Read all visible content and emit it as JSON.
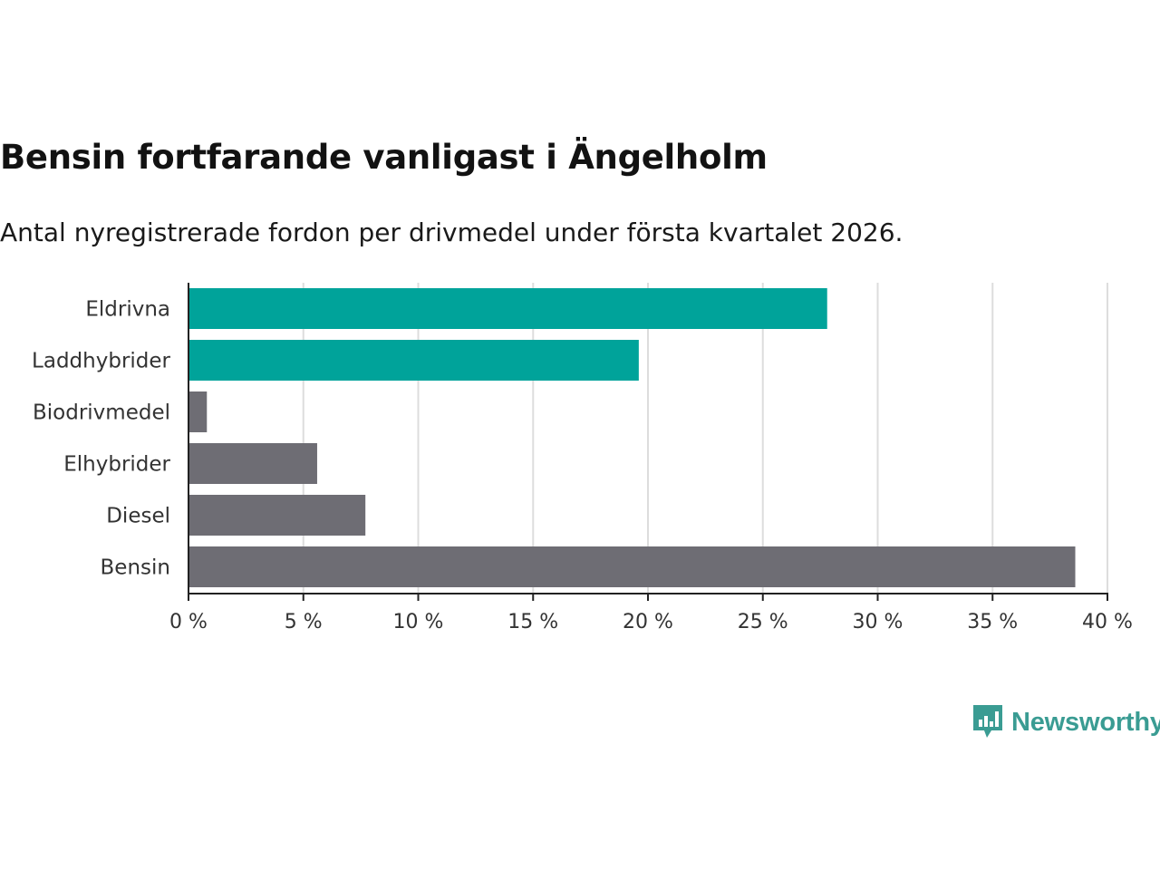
{
  "header": {
    "title": "Bensin fortfarande vanligast i Ängelholm",
    "subtitle": "Antal nyregistrerade fordon per drivmedel under första kvartalet 2026."
  },
  "brand": {
    "name": "Newsworthy",
    "icon": "newsworthy-logo-icon",
    "color": "#3a9c93"
  },
  "colors": {
    "highlight": "#00a39a",
    "default": "#6e6d74",
    "grid": "#dddddd",
    "axis": "#222222"
  },
  "chart_data": {
    "type": "bar",
    "orientation": "horizontal",
    "categories": [
      "Eldrivna",
      "Laddhybrider",
      "Biodrivmedel",
      "Elhybrider",
      "Diesel",
      "Bensin"
    ],
    "values": [
      27.8,
      19.6,
      0.8,
      5.6,
      7.7,
      38.6
    ],
    "highlight": [
      true,
      true,
      false,
      false,
      false,
      false
    ],
    "unit": "%",
    "xlim": [
      0,
      40
    ],
    "xticks": [
      0,
      5,
      10,
      15,
      20,
      25,
      30,
      35,
      40
    ],
    "xtick_labels": [
      "0 %",
      "5 %",
      "10 %",
      "15 %",
      "20 %",
      "25 %",
      "30 %",
      "35 %",
      "40 %"
    ],
    "grid": true,
    "title": "Bensin fortfarande vanligast i Ängelholm",
    "xlabel": "",
    "ylabel": ""
  }
}
